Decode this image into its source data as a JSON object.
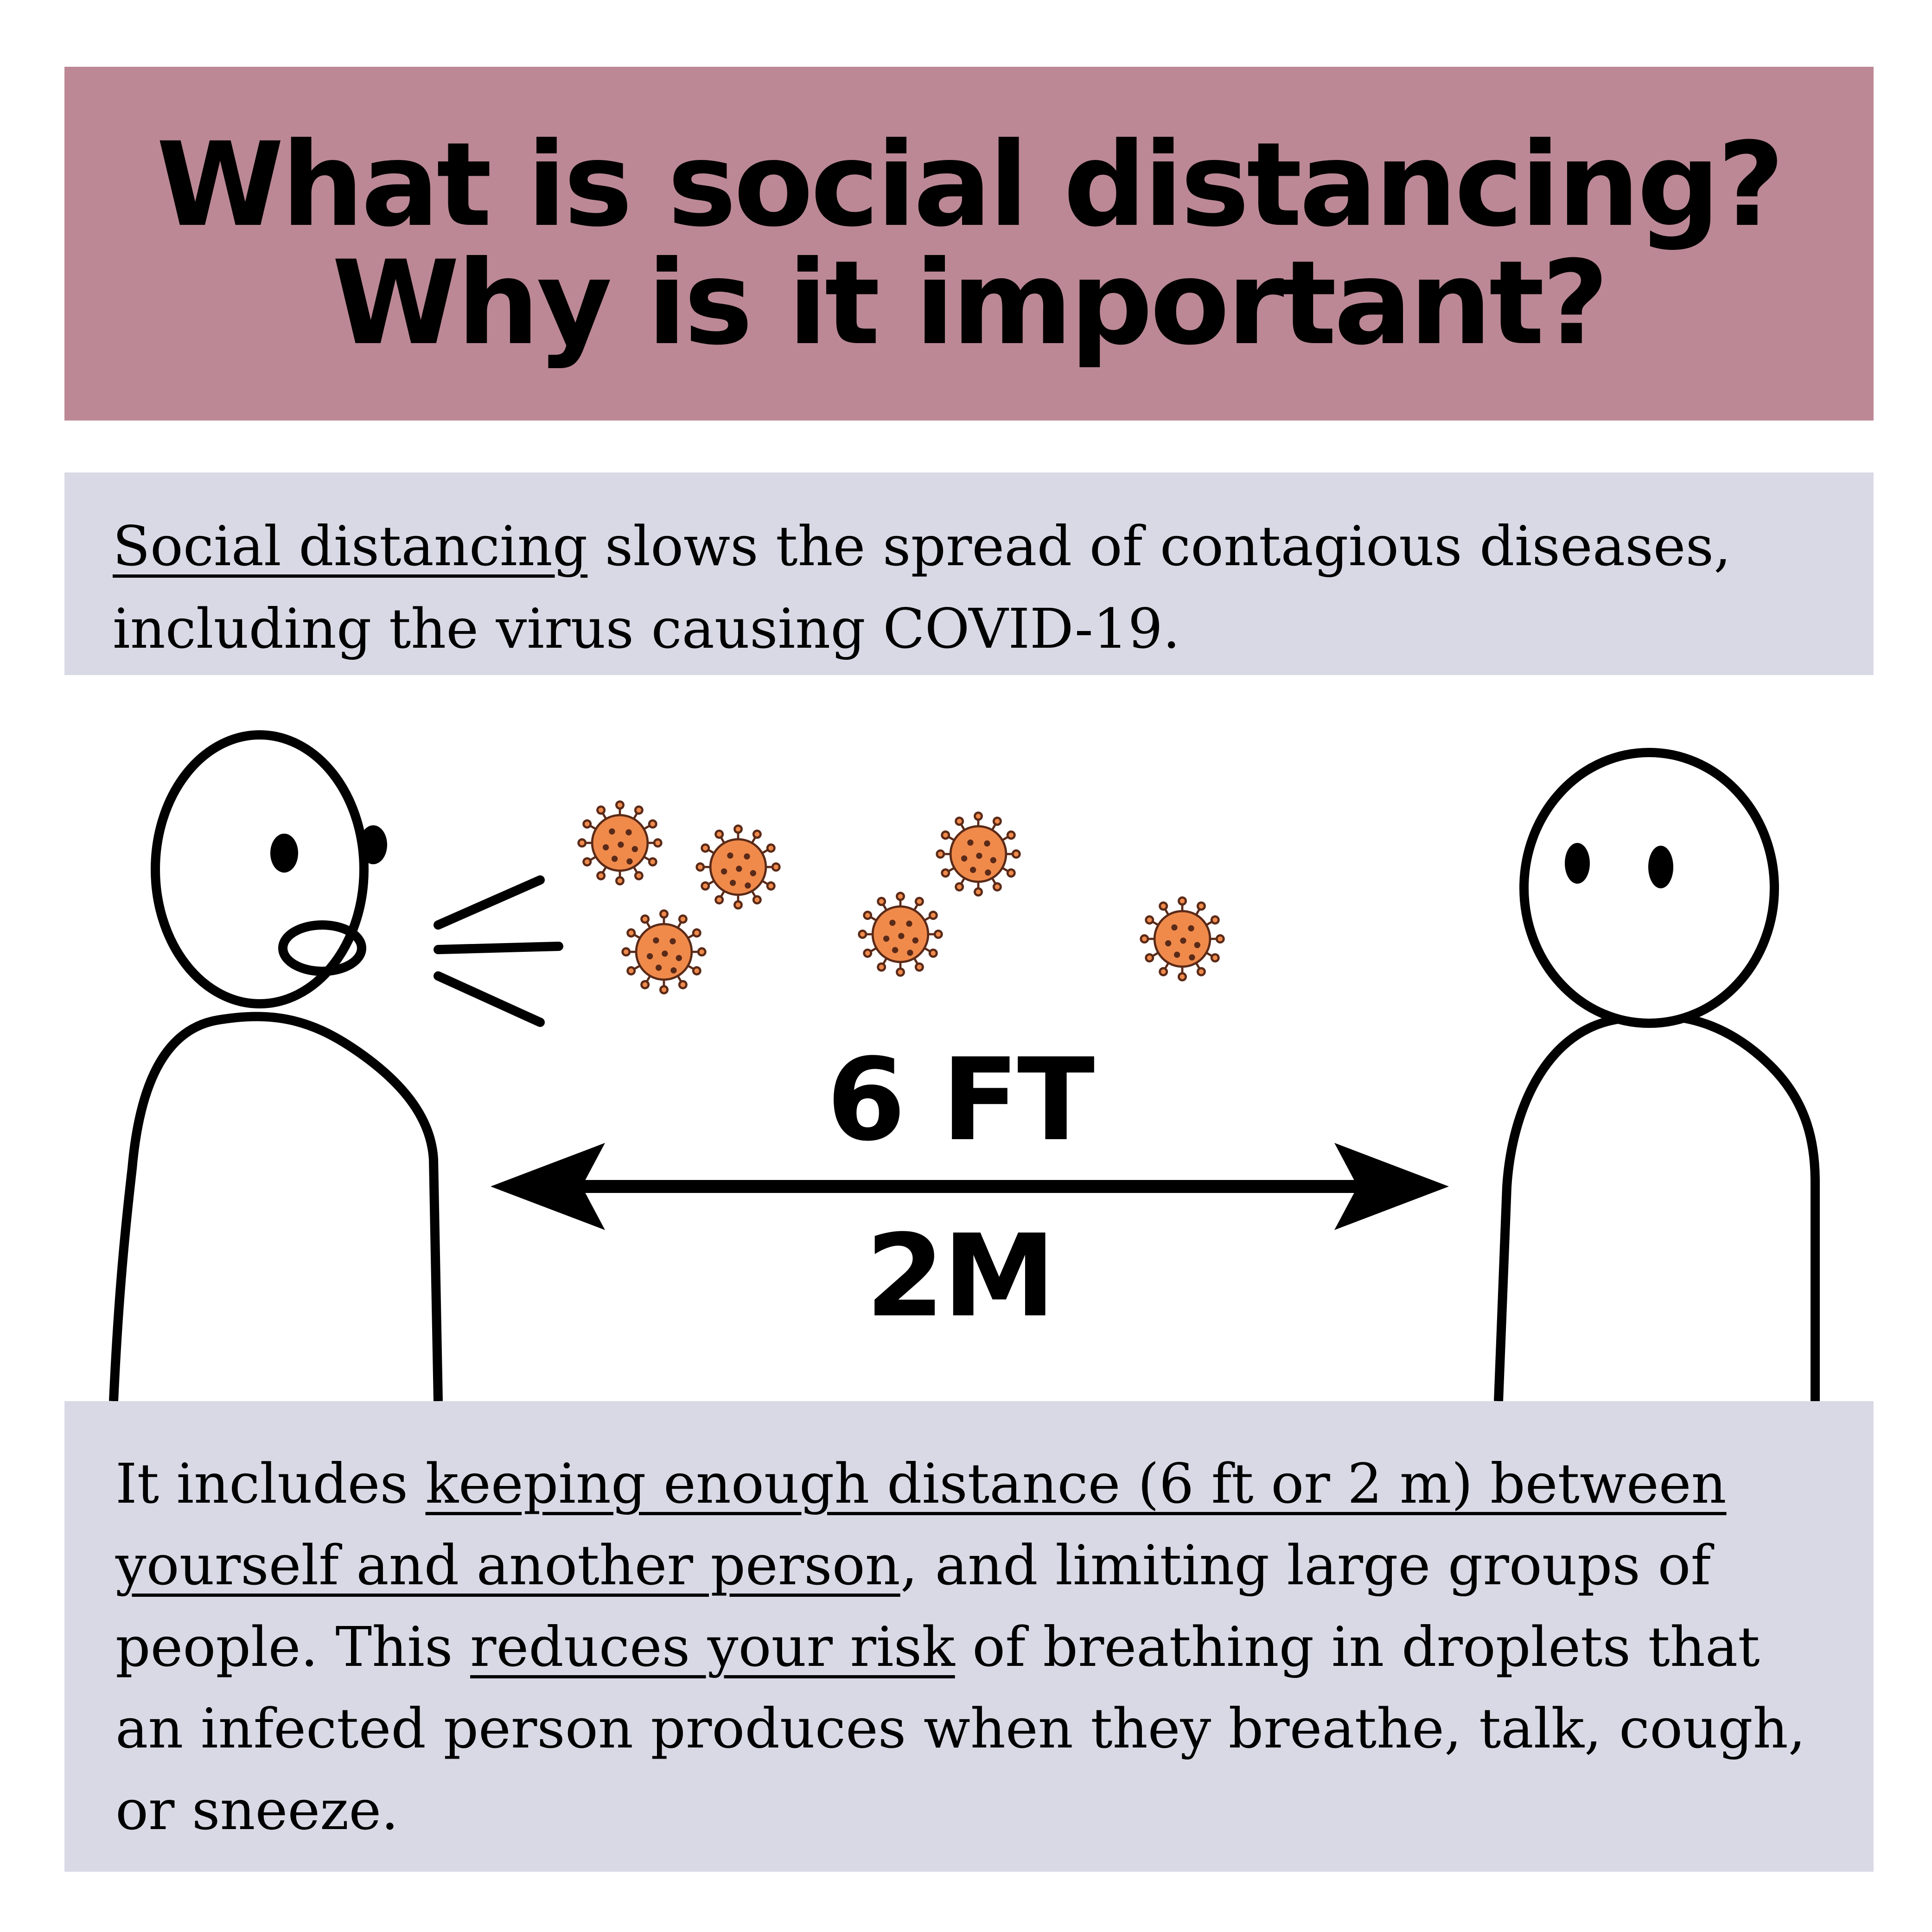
{
  "header": {
    "line1": "What is social distancing?",
    "line2": "Why is it important?",
    "background": "#bc8895"
  },
  "intro": {
    "term": "Social distancing",
    "rest_line1": " slows the spread of contagious diseases,",
    "line2": "including the virus causing COVID-19."
  },
  "illustration": {
    "distance_ft": "6 FT",
    "distance_m": "2M",
    "icons": [
      "speaking-person-icon",
      "listening-person-icon",
      "virus-icon",
      "double-arrow-icon"
    ],
    "virus_color": "#f08a4b"
  },
  "details": {
    "s1": "It includes ",
    "u1": "keeping enough distance (6 ft or 2 m) between yourself and another person",
    "s2": ", and limiting large groups of people. This ",
    "u2": "reduces your risk",
    "s3": " of breathing in droplets that an infected person produces when they breathe, talk, cough, or sneeze."
  },
  "colors": {
    "panel": "#d9d9e6",
    "text": "#000000"
  }
}
